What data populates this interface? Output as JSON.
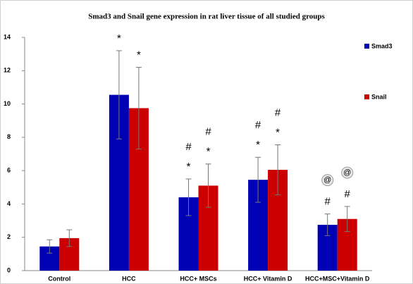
{
  "chart_data": {
    "type": "bar",
    "title": "Smad3 and Snail gene expression in rat liver tissue of all studied groups",
    "categories": [
      "Control",
      "HCC",
      "HCC+ MSCs",
      "HCC+ Vitamin D",
      "HCC+MSC+Vitamin D"
    ],
    "series": [
      {
        "name": "Smad3",
        "color": "#0000b4",
        "values": [
          1.45,
          10.55,
          4.4,
          5.45,
          2.75
        ],
        "errors": [
          0.4,
          2.65,
          1.1,
          1.35,
          0.65
        ],
        "annotations": [
          [],
          [
            "*"
          ],
          [
            "#",
            "*"
          ],
          [
            "#",
            "*"
          ],
          [
            "@",
            "#"
          ]
        ]
      },
      {
        "name": "Snail",
        "color": "#cc0000",
        "values": [
          1.95,
          9.75,
          5.1,
          6.05,
          3.1
        ],
        "errors": [
          0.5,
          2.45,
          1.3,
          1.5,
          0.75
        ],
        "annotations": [
          [],
          [
            "*"
          ],
          [
            "#",
            "*"
          ],
          [
            "#",
            "*"
          ],
          [
            "@",
            "#"
          ]
        ]
      }
    ],
    "ylim": [
      0,
      14
    ],
    "yticks": [
      0,
      2,
      4,
      6,
      8,
      10,
      12,
      14
    ],
    "grid": false,
    "legend": "right"
  }
}
